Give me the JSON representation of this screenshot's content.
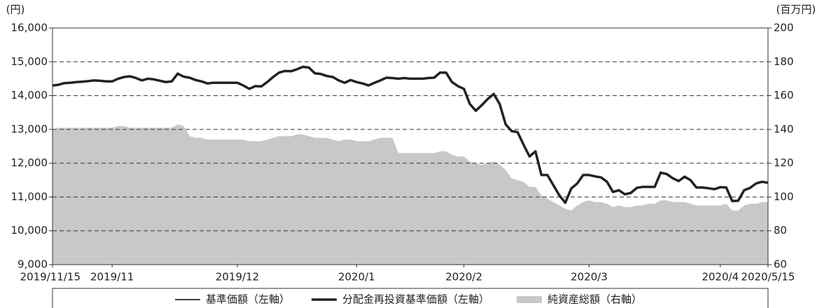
{
  "chart_data": {
    "type": "line",
    "y_label": "(円)",
    "y2_label": "(百万円)",
    "categories": [
      "2019/11/15",
      null,
      null,
      null,
      null,
      null,
      null,
      null,
      null,
      null,
      "2019/11",
      null,
      null,
      null,
      null,
      null,
      null,
      null,
      null,
      null,
      null,
      null,
      null,
      null,
      null,
      null,
      null,
      null,
      null,
      null,
      null,
      "2019/12",
      null,
      null,
      null,
      null,
      null,
      null,
      null,
      null,
      null,
      null,
      null,
      null,
      null,
      null,
      null,
      null,
      null,
      null,
      null,
      "2020/1",
      null,
      null,
      null,
      null,
      null,
      null,
      null,
      null,
      null,
      null,
      null,
      null,
      null,
      null,
      null,
      null,
      null,
      "2020/2",
      null,
      null,
      null,
      null,
      null,
      null,
      null,
      null,
      null,
      null,
      null,
      null,
      null,
      null,
      null,
      null,
      null,
      null,
      null,
      null,
      "2020/3",
      null,
      null,
      null,
      null,
      null,
      null,
      null,
      null,
      null,
      null,
      null,
      null,
      null,
      null,
      null,
      null,
      null,
      null,
      null,
      null,
      null,
      "2020/4",
      null,
      null,
      null,
      null,
      null,
      null,
      null,
      "2020/5/15"
    ],
    "series": [
      {
        "name": "純資産総額（右軸）",
        "type": "area",
        "axis": "y2",
        "color": "#c8c8c8",
        "values": [
          140,
          141,
          141,
          141,
          141,
          141,
          141,
          141,
          141,
          141,
          141,
          142,
          142,
          141,
          141,
          141,
          141,
          141,
          141,
          141,
          141,
          143,
          142,
          136,
          135,
          135,
          134,
          134,
          134,
          134,
          134,
          134,
          134,
          133,
          133,
          133,
          134,
          135,
          136,
          136,
          136,
          137,
          137,
          136,
          135,
          135,
          135,
          134,
          133,
          134,
          134,
          133,
          133,
          133,
          134,
          135,
          135,
          135,
          126,
          126,
          126,
          126,
          126,
          126,
          126,
          127,
          127,
          125,
          124,
          124,
          121,
          120,
          119,
          120,
          121,
          119,
          116,
          111,
          110,
          109,
          106,
          106,
          101,
          99,
          97,
          95,
          93,
          92,
          95,
          97,
          98,
          97,
          97,
          96,
          94,
          95,
          94,
          94,
          95,
          95,
          96,
          96,
          98,
          98,
          97,
          97,
          97,
          96,
          95,
          95,
          95,
          95,
          95,
          96,
          92,
          92,
          95,
          96,
          96,
          97,
          97
        ]
      },
      {
        "name": "基準価額（左軸）",
        "type": "line",
        "color": "#000000",
        "width": 1.5,
        "values": [
          14300,
          14320,
          14370,
          14380,
          14400,
          14410,
          14430,
          14450,
          14440,
          14420,
          14420,
          14500,
          14550,
          14570,
          14520,
          14450,
          14500,
          14480,
          14440,
          14400,
          14420,
          14650,
          14560,
          14530,
          14460,
          14420,
          14360,
          14380,
          14380,
          14380,
          14380,
          14380,
          14300,
          14200,
          14280,
          14270,
          14400,
          14550,
          14680,
          14730,
          14720,
          14780,
          14850,
          14830,
          14660,
          14640,
          14580,
          14550,
          14450,
          14380,
          14460,
          14400,
          14360,
          14300,
          14380,
          14450,
          14530,
          14520,
          14500,
          14520,
          14500,
          14500,
          14500,
          14520,
          14530,
          14680,
          14680,
          14400,
          14280,
          14200,
          13750,
          13550,
          13720,
          13900,
          14050,
          13750,
          13150,
          12950,
          12920,
          12550,
          12200,
          12350,
          11650,
          11650,
          11350,
          11050,
          10830,
          11250,
          11400,
          11650,
          11650,
          11610,
          11580,
          11450,
          11150,
          11200,
          11080,
          11120,
          11270,
          11300,
          11300,
          11300,
          11720,
          11680,
          11560,
          11470,
          11600,
          11500,
          11280,
          11280,
          11260,
          11230,
          11290,
          11280,
          10880,
          10890,
          11200,
          11270,
          11400,
          11450,
          11420
        ]
      },
      {
        "name": "分配金再投資基準価額（左軸）",
        "type": "line",
        "color": "#222222",
        "width": 3.5,
        "values": [
          14300,
          14320,
          14370,
          14380,
          14400,
          14410,
          14430,
          14450,
          14440,
          14420,
          14420,
          14500,
          14550,
          14570,
          14520,
          14450,
          14500,
          14480,
          14440,
          14400,
          14420,
          14650,
          14560,
          14530,
          14460,
          14420,
          14360,
          14380,
          14380,
          14380,
          14380,
          14380,
          14300,
          14200,
          14280,
          14270,
          14400,
          14550,
          14680,
          14730,
          14720,
          14780,
          14850,
          14830,
          14660,
          14640,
          14580,
          14550,
          14450,
          14380,
          14460,
          14400,
          14360,
          14300,
          14380,
          14450,
          14530,
          14520,
          14500,
          14520,
          14500,
          14500,
          14500,
          14520,
          14530,
          14680,
          14680,
          14400,
          14280,
          14200,
          13750,
          13550,
          13720,
          13900,
          14050,
          13750,
          13150,
          12950,
          12920,
          12550,
          12200,
          12350,
          11650,
          11650,
          11350,
          11050,
          10830,
          11250,
          11400,
          11650,
          11650,
          11610,
          11580,
          11450,
          11150,
          11200,
          11080,
          11120,
          11270,
          11300,
          11300,
          11300,
          11720,
          11680,
          11560,
          11470,
          11600,
          11500,
          11280,
          11280,
          11260,
          11230,
          11290,
          11280,
          10880,
          10890,
          11200,
          11270,
          11400,
          11450,
          11420
        ]
      }
    ],
    "legend_order": [
      1,
      2,
      0
    ],
    "ylim": [
      9000,
      16000
    ],
    "yticks": [
      {
        "value": 9000,
        "label": "9,000"
      },
      {
        "value": 10000,
        "label": "10,000"
      },
      {
        "value": 11000,
        "label": "11,000"
      },
      {
        "value": 12000,
        "label": "12,000"
      },
      {
        "value": 13000,
        "label": "13,000"
      },
      {
        "value": 14000,
        "label": "14,000"
      },
      {
        "value": 15000,
        "label": "15,000"
      },
      {
        "value": 16000,
        "label": "16,000"
      }
    ],
    "y2lim": [
      60,
      200
    ],
    "y2ticks": [
      60,
      80,
      100,
      120,
      140,
      160,
      180,
      200
    ],
    "grid": true,
    "legend": "bottom"
  }
}
